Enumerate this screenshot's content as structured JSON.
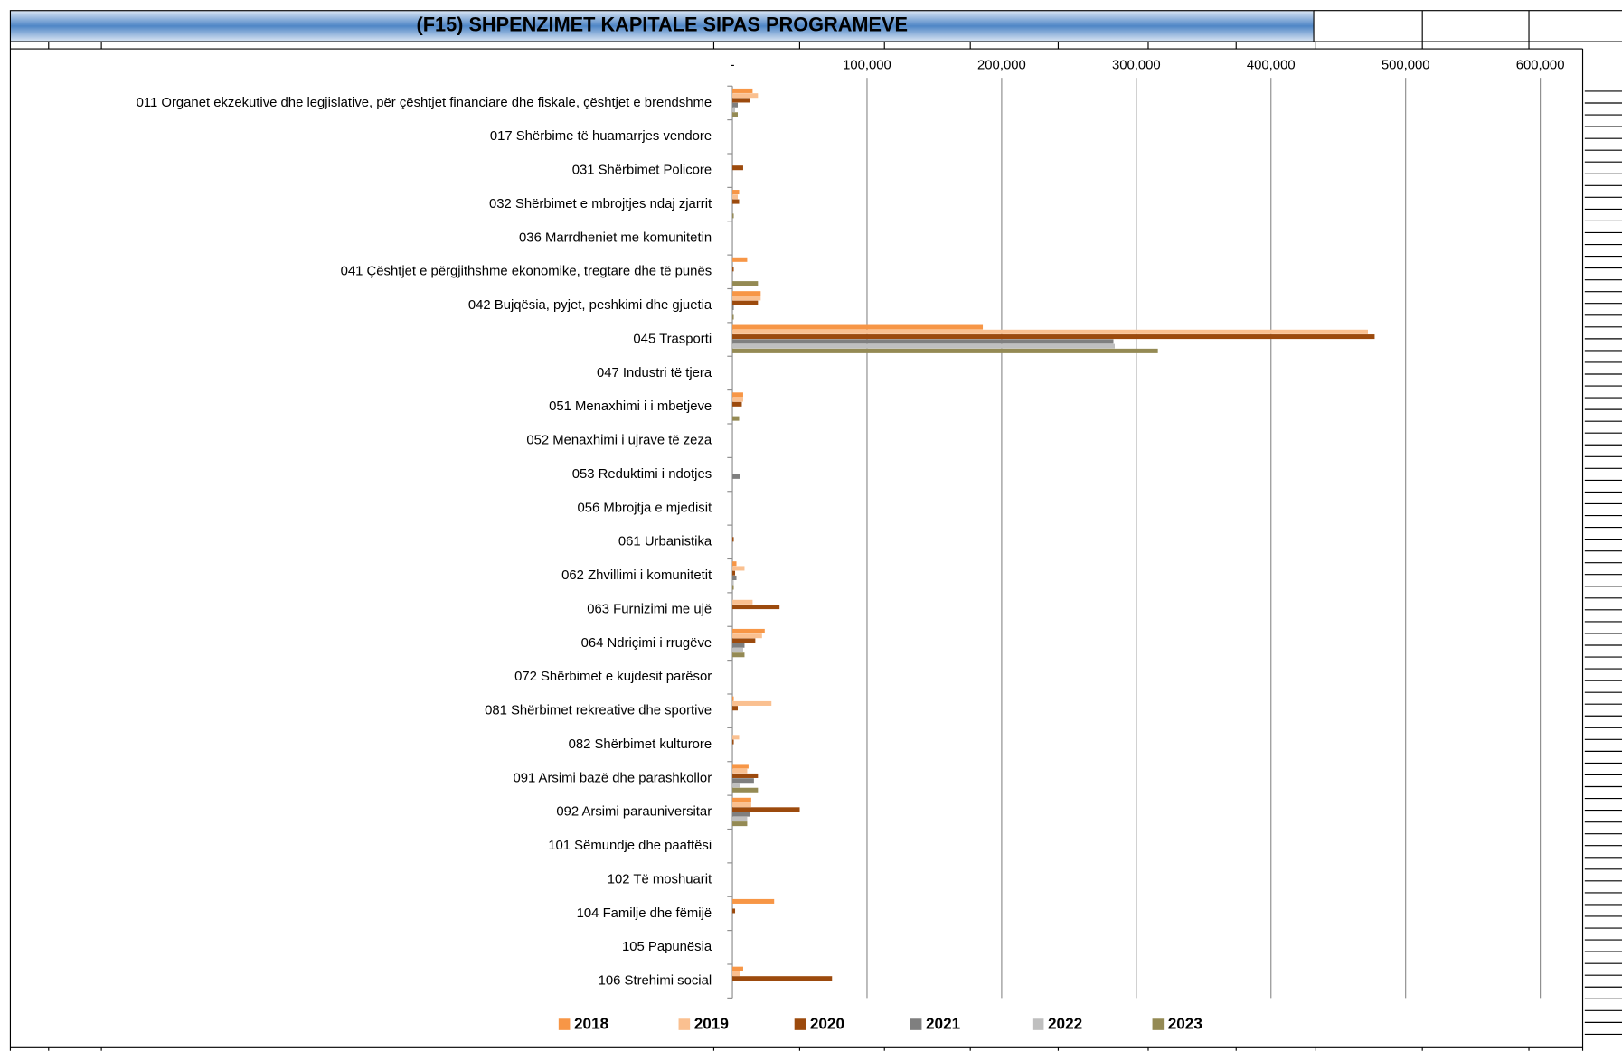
{
  "chart_data": {
    "type": "hbar",
    "title": "(F15) SHPENZIMET KAPITALE SIPAS PROGRAMEVE",
    "categories": [
      "011 Organet ekzekutive dhe legjislative, për çështjet financiare dhe fiskale, çështjet e brendshme",
      "017 Shërbime të  huamarrjes vendore",
      "031 Shërbimet Policore",
      "032 Shërbimet e mbrojtjes ndaj zjarrit",
      "036 Marrdheniet me komunitetin",
      "041 Çështjet e përgjithshme ekonomike, tregtare dhe të punës",
      "042 Bujqësia, pyjet, peshkimi dhe gjuetia",
      "045 Trasporti",
      "047 Industri të tjera",
      "051 Menaxhimi i i mbetjeve",
      "052 Menaxhimi i ujrave të zeza",
      "053 Reduktimi i ndotjes",
      "056 Mbrojtja e mjedisit",
      "061 Urbanistika",
      "062 Zhvillimi i komunitetit",
      "063 Furnizimi me ujë",
      "064 Ndriçimi i rrugëve",
      "072 Shërbimet e kujdesit parësor ",
      "081 Shërbimet rekreative dhe sportive",
      "082 Shërbimet kulturore",
      "091 Arsimi bazë dhe parashkollor",
      "092 Arsimi  parauniversitar",
      "101 Sëmundje dhe paaftësi",
      "102 Të moshuarit",
      "104 Familje dhe fëmijë",
      "105 Papunësia",
      "106 Strehimi social"
    ],
    "series": [
      {
        "name": "2018",
        "color": "#f79646",
        "values": [
          15000,
          0,
          0,
          5000,
          0,
          11000,
          21000,
          186000,
          0,
          8000,
          0,
          0,
          0,
          0,
          3000,
          0,
          24000,
          0,
          1000,
          0,
          12000,
          14000,
          0,
          0,
          31000,
          0,
          8000
        ]
      },
      {
        "name": "2019",
        "color": "#fac090",
        "values": [
          19000,
          0,
          0,
          4000,
          0,
          0,
          21000,
          472000,
          0,
          8000,
          0,
          0,
          0,
          0,
          9000,
          15000,
          22000,
          0,
          29000,
          5000,
          11000,
          14000,
          0,
          0,
          0,
          0,
          6000
        ]
      },
      {
        "name": "2020",
        "color": "#9c4a0d",
        "values": [
          13000,
          0,
          8000,
          5000,
          0,
          1000,
          19000,
          477000,
          0,
          7000,
          0,
          0,
          0,
          1000,
          2000,
          35000,
          17000,
          0,
          4000,
          1000,
          19000,
          50000,
          0,
          0,
          2000,
          0,
          74000
        ]
      },
      {
        "name": "2021",
        "color": "#7f7f7f",
        "values": [
          4000,
          0,
          0,
          0,
          0,
          0,
          1000,
          283000,
          0,
          0,
          0,
          6000,
          0,
          0,
          3000,
          0,
          9000,
          0,
          0,
          0,
          16000,
          13000,
          0,
          0,
          0,
          0,
          0
        ]
      },
      {
        "name": "2022",
        "color": "#bfbfbf",
        "values": [
          2000,
          0,
          0,
          0,
          0,
          0,
          0,
          284000,
          0,
          0,
          0,
          0,
          0,
          0,
          1000,
          0,
          8000,
          0,
          0,
          0,
          6000,
          11000,
          0,
          0,
          0,
          0,
          0
        ]
      },
      {
        "name": "2023",
        "color": "#948a54",
        "values": [
          4000,
          0,
          0,
          1000,
          0,
          19000,
          1000,
          316000,
          0,
          5000,
          0,
          0,
          0,
          0,
          1000,
          0,
          9000,
          0,
          0,
          0,
          19000,
          11000,
          0,
          0,
          0,
          0,
          0
        ]
      }
    ],
    "xlim": [
      0,
      600000
    ],
    "xticks": [
      {
        "value": 0,
        "label": "-"
      },
      {
        "value": 100000,
        "label": "100,000"
      },
      {
        "value": 200000,
        "label": "200,000"
      },
      {
        "value": 300000,
        "label": "300,000"
      },
      {
        "value": 400000,
        "label": "400,000"
      },
      {
        "value": 500000,
        "label": "500,000"
      },
      {
        "value": 600000,
        "label": "600,000"
      }
    ],
    "grid": true,
    "legend": "bottom"
  }
}
